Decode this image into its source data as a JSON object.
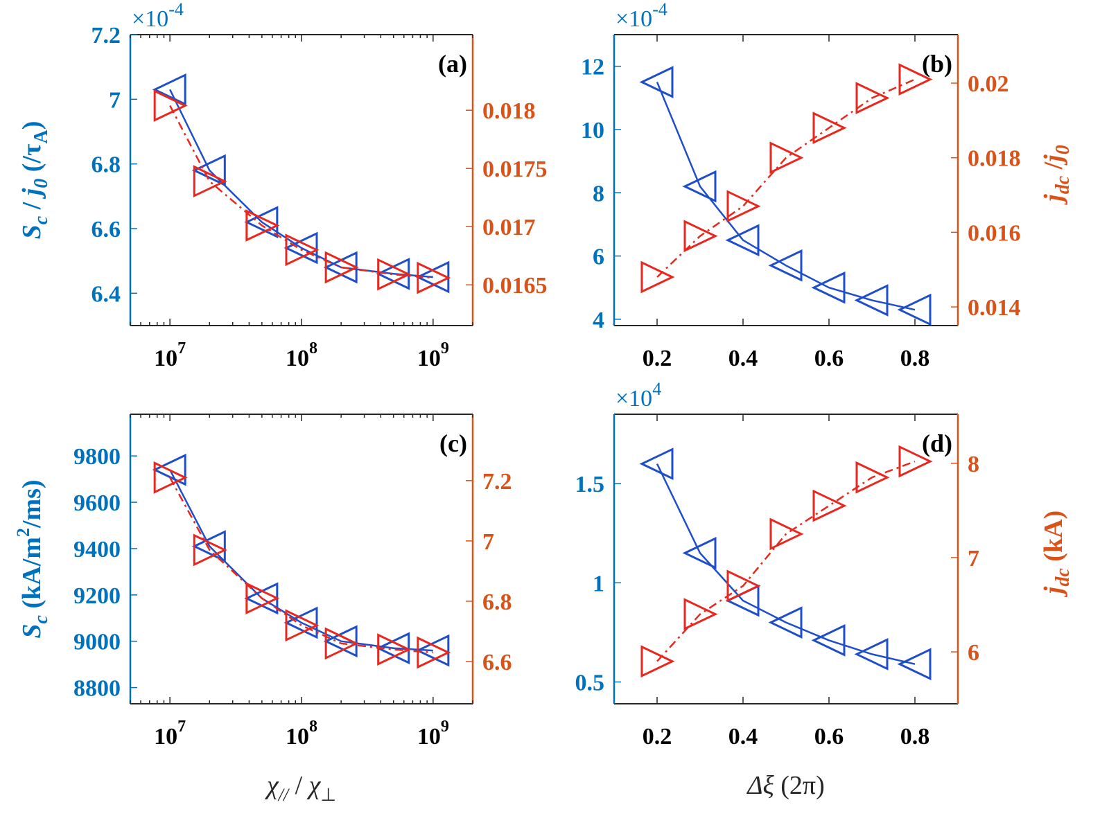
{
  "colors": {
    "left_axis": "#0072BD",
    "right_axis": "#D95319",
    "blue_series": "#1F4FC8",
    "red_series": "#E8281E",
    "tick_black": "#000000"
  },
  "chart_data": [
    {
      "id": "a",
      "type": "line",
      "panel_label": "(a)",
      "xscale": "log",
      "xlim": [
        5000000,
        2000000000
      ],
      "x_ticks": [
        10000000,
        100000000,
        1000000000
      ],
      "x_tick_labels": [
        {
          "base": "10",
          "exp": "7"
        },
        {
          "base": "10",
          "exp": "8"
        },
        {
          "base": "10",
          "exp": "9"
        }
      ],
      "y_left": {
        "lim": [
          6.3,
          7.2
        ],
        "ticks": [
          6.4,
          6.6,
          6.8,
          7,
          7.2
        ],
        "tick_labels": [
          "6.4",
          "6.6",
          "6.8",
          "7",
          "7.2"
        ],
        "multiplier": "×10",
        "multiplier_exp": "-4",
        "label_parts": [
          "S",
          "c",
          " / ",
          "j",
          "0",
          " (/τ",
          "A",
          ")"
        ]
      },
      "y_right": {
        "lim": [
          0.01615,
          0.01865
        ],
        "ticks": [
          0.0165,
          0.017,
          0.0175,
          0.018
        ],
        "tick_labels": [
          "0.0165",
          "0.017",
          "0.0175",
          "0.018"
        ]
      },
      "series": [
        {
          "axis": "left",
          "marker": "left-triangle",
          "style": "solid",
          "x": [
            10000000,
            20000000,
            50000000,
            100000000,
            200000000,
            500000000,
            1000000000
          ],
          "y": [
            7.03,
            6.78,
            6.62,
            6.54,
            6.48,
            6.46,
            6.45
          ]
        },
        {
          "axis": "right",
          "marker": "right-triangle",
          "style": "dashdot",
          "x": [
            10000000,
            20000000,
            50000000,
            100000000,
            200000000,
            500000000,
            1000000000
          ],
          "y": [
            0.01804,
            0.01739,
            0.01701,
            0.0168,
            0.01665,
            0.01659,
            0.01656
          ]
        }
      ]
    },
    {
      "id": "b",
      "type": "line",
      "panel_label": "(b)",
      "xscale": "linear",
      "xlim": [
        0.1,
        0.9
      ],
      "x_ticks": [
        0.2,
        0.4,
        0.6,
        0.8
      ],
      "x_tick_labels": [
        "0.2",
        "0.4",
        "0.6",
        "0.8"
      ],
      "y_left": {
        "lim": [
          3.8,
          13
        ],
        "ticks": [
          4,
          6,
          8,
          10,
          12
        ],
        "tick_labels": [
          "4",
          "6",
          "8",
          "10",
          "12"
        ],
        "multiplier": "×10",
        "multiplier_exp": "-4",
        "label_parts": []
      },
      "y_right": {
        "lim": [
          0.0135,
          0.0213
        ],
        "ticks": [
          0.014,
          0.016,
          0.018,
          0.02
        ],
        "tick_labels": [
          "0.014",
          "0.016",
          "0.018",
          "0.02"
        ],
        "label_parts": [
          "j",
          "dc",
          " /",
          "j",
          "0"
        ]
      },
      "series": [
        {
          "axis": "left",
          "marker": "left-triangle",
          "style": "solid",
          "x": [
            0.2,
            0.3,
            0.4,
            0.5,
            0.6,
            0.7,
            0.8
          ],
          "y": [
            11.5,
            8.2,
            6.5,
            5.7,
            5.0,
            4.6,
            4.3
          ]
        },
        {
          "axis": "right",
          "marker": "right-triangle",
          "style": "dashdot",
          "x": [
            0.2,
            0.3,
            0.4,
            0.5,
            0.6,
            0.7,
            0.8
          ],
          "y": [
            0.0148,
            0.0159,
            0.0167,
            0.018,
            0.0188,
            0.0196,
            0.0201
          ]
        }
      ]
    },
    {
      "id": "c",
      "type": "line",
      "panel_label": "(c)",
      "xscale": "log",
      "xlim": [
        5000000,
        2000000000
      ],
      "x_ticks": [
        10000000,
        100000000,
        1000000000
      ],
      "x_tick_labels": [
        {
          "base": "10",
          "exp": "7"
        },
        {
          "base": "10",
          "exp": "8"
        },
        {
          "base": "10",
          "exp": "9"
        }
      ],
      "xlabel_parts": [
        "χ",
        "//",
        " / ",
        "χ",
        "⊥"
      ],
      "y_left": {
        "lim": [
          8730,
          9980
        ],
        "ticks": [
          8800,
          9000,
          9200,
          9400,
          9600,
          9800
        ],
        "tick_labels": [
          "8800",
          "9000",
          "9200",
          "9400",
          "9600",
          "9800"
        ],
        "multiplier": "",
        "multiplier_exp": "",
        "label_parts": [
          "S",
          "c",
          "  (kA/m",
          "2",
          "/ms)"
        ]
      },
      "y_right": {
        "lim": [
          6.46,
          7.42
        ],
        "ticks": [
          6.6,
          6.8,
          7.0,
          7.2
        ],
        "tick_labels": [
          "6.6",
          "6.8",
          "7",
          "7.2"
        ]
      },
      "series": [
        {
          "axis": "left",
          "marker": "left-triangle",
          "style": "solid",
          "x": [
            10000000,
            20000000,
            50000000,
            100000000,
            200000000,
            500000000,
            1000000000
          ],
          "y": [
            9740,
            9410,
            9185,
            9080,
            9000,
            8970,
            8960
          ]
        },
        {
          "axis": "right",
          "marker": "right-triangle",
          "style": "dashdot",
          "x": [
            10000000,
            20000000,
            50000000,
            100000000,
            200000000,
            500000000,
            1000000000
          ],
          "y": [
            7.21,
            6.97,
            6.81,
            6.72,
            6.66,
            6.64,
            6.63
          ]
        }
      ]
    },
    {
      "id": "d",
      "type": "line",
      "panel_label": "(d)",
      "xscale": "linear",
      "xlim": [
        0.1,
        0.9
      ],
      "x_ticks": [
        0.2,
        0.4,
        0.6,
        0.8
      ],
      "x_tick_labels": [
        "0.2",
        "0.4",
        "0.6",
        "0.8"
      ],
      "xlabel_parts": [
        "Δξ",
        " (2π)"
      ],
      "y_left": {
        "lim": [
          0.39,
          1.85
        ],
        "ticks": [
          0.5,
          1,
          1.5
        ],
        "tick_labels": [
          "0.5",
          "1",
          "1.5"
        ],
        "multiplier": "×10",
        "multiplier_exp": "4",
        "label_parts": []
      },
      "y_right": {
        "lim": [
          5.45,
          8.52
        ],
        "ticks": [
          6,
          7,
          8
        ],
        "tick_labels": [
          "6",
          "7",
          "8"
        ],
        "label_parts": [
          "j",
          "dc",
          " (kA)"
        ]
      },
      "series": [
        {
          "axis": "left",
          "marker": "left-triangle",
          "style": "solid",
          "x": [
            0.2,
            0.3,
            0.4,
            0.5,
            0.6,
            0.7,
            0.8
          ],
          "y": [
            1.6,
            1.15,
            0.91,
            0.8,
            0.71,
            0.64,
            0.59
          ]
        },
        {
          "axis": "right",
          "marker": "right-triangle",
          "style": "dashdot",
          "x": [
            0.2,
            0.3,
            0.4,
            0.5,
            0.6,
            0.7,
            0.8
          ],
          "y": [
            5.9,
            6.4,
            6.7,
            7.25,
            7.55,
            7.85,
            8.02
          ]
        }
      ]
    }
  ]
}
